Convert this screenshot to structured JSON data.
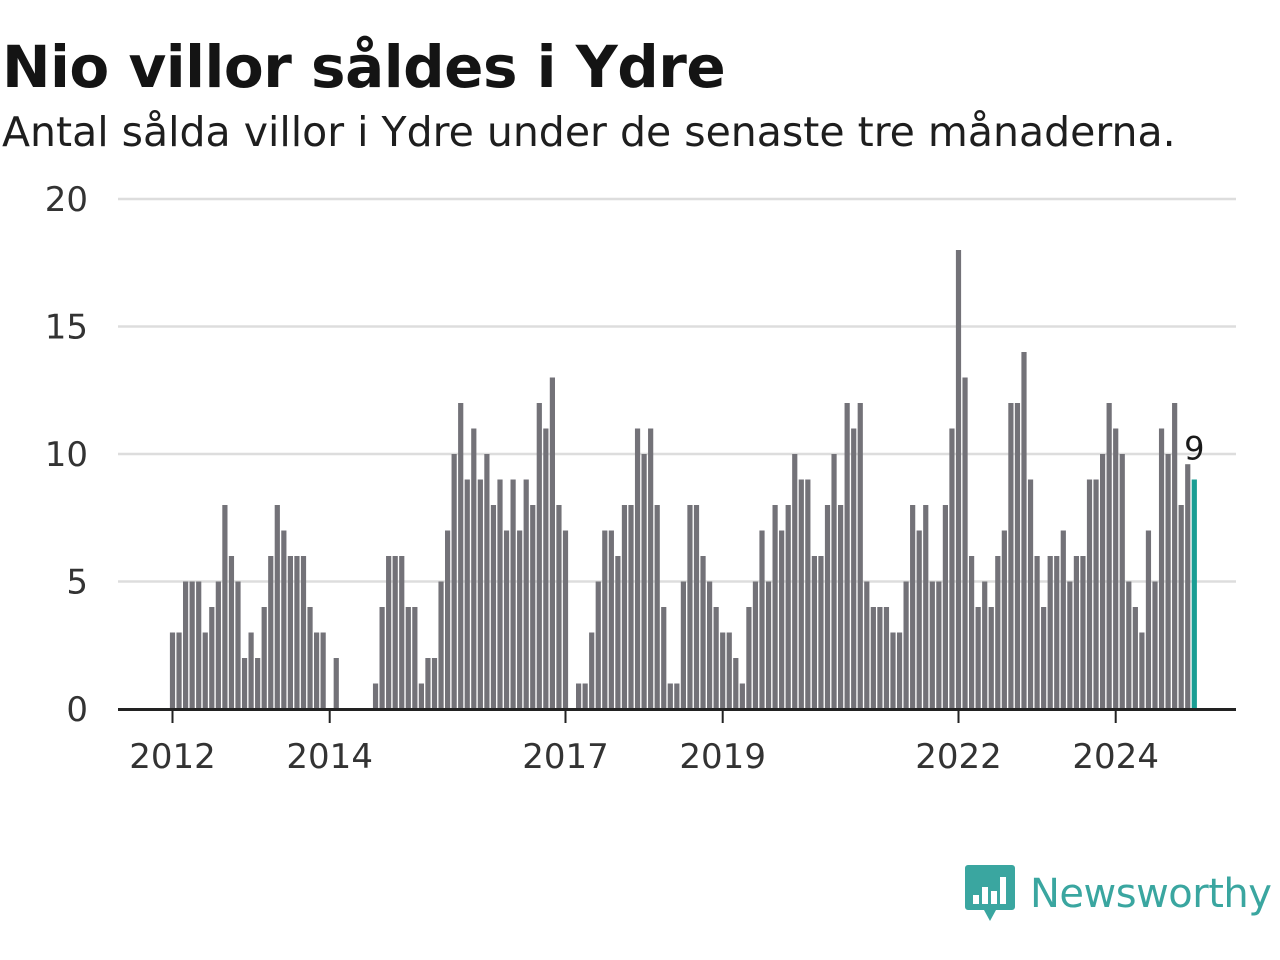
{
  "brand": {
    "name": "Newsworthy",
    "logo_icon": "newsworthy-bar-chart-icon",
    "color": "#3aa6a0"
  },
  "colors": {
    "bar": "#737278",
    "highlight": "#1a9e94",
    "grid": "#dddddd",
    "axis": "#222222"
  },
  "chart_data": {
    "type": "bar",
    "title": "Nio villor såldes i Ydre",
    "subtitle": "Antal sålda villor i Ydre under de senaste tre månaderna.",
    "xlabel": "",
    "ylabel": "",
    "ylim": [
      0,
      20
    ],
    "y_ticks": [
      0,
      5,
      10,
      15,
      20
    ],
    "x_ticks": [
      {
        "label": "2012",
        "month_index": 0
      },
      {
        "label": "2014",
        "month_index": 24
      },
      {
        "label": "2017",
        "month_index": 60
      },
      {
        "label": "2019",
        "month_index": 84
      },
      {
        "label": "2022",
        "month_index": 120
      },
      {
        "label": "2024",
        "month_index": 144
      }
    ],
    "start_month": "2012-01",
    "values": [
      3,
      3,
      5,
      5,
      5,
      3,
      4,
      5,
      8,
      6,
      5,
      2,
      3,
      2,
      4,
      6,
      8,
      7,
      6,
      6,
      6,
      4,
      3,
      3,
      0,
      2,
      0,
      0,
      0,
      0,
      0,
      1,
      4,
      6,
      6,
      6,
      4,
      4,
      1,
      2,
      2,
      5,
      7,
      10,
      12,
      9,
      11,
      9,
      10,
      8,
      9,
      7,
      9,
      7,
      9,
      8,
      12,
      11,
      13,
      8,
      7,
      0,
      1,
      1,
      3,
      5,
      7,
      7,
      6,
      8,
      8,
      11,
      10,
      11,
      8,
      4,
      1,
      1,
      5,
      8,
      8,
      6,
      5,
      4,
      3,
      3,
      2,
      1,
      4,
      5,
      7,
      5,
      8,
      7,
      8,
      10,
      9,
      9,
      6,
      6,
      8,
      10,
      8,
      12,
      11,
      12,
      5,
      4,
      4,
      4,
      3,
      3,
      5,
      8,
      7,
      8,
      5,
      5,
      8,
      11,
      18,
      13,
      6,
      4,
      5,
      4,
      6,
      7,
      12,
      12,
      14,
      9,
      6,
      4,
      6,
      6,
      7,
      5,
      6,
      6,
      9,
      9,
      10,
      12,
      11,
      10,
      5,
      4,
      3,
      7,
      5,
      11,
      10,
      12,
      8,
      9.6,
      9
    ],
    "highlight_last": true,
    "annotations": [
      {
        "text": "9",
        "target": "last"
      }
    ],
    "grid": true,
    "legend": "none"
  }
}
